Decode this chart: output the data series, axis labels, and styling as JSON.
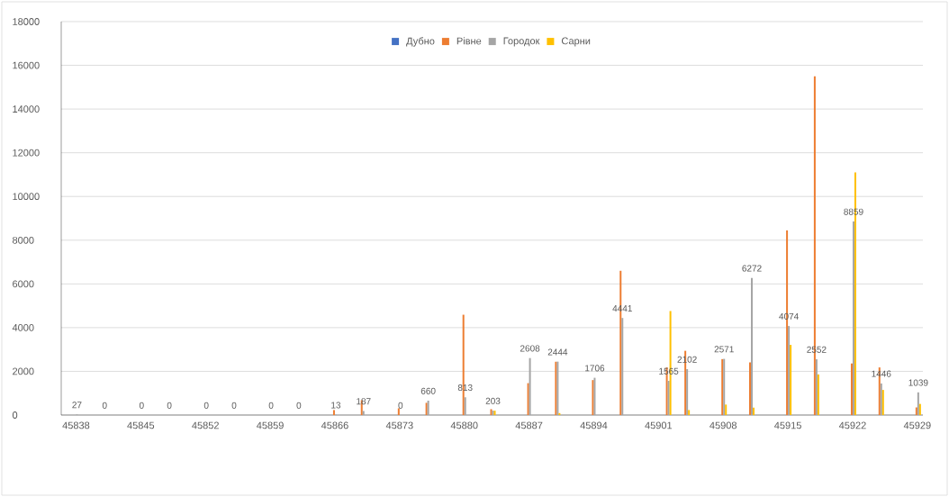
{
  "chart_data": {
    "type": "bar",
    "x": [
      45838,
      45841,
      45845,
      45848,
      45852,
      45855,
      45859,
      45862,
      45866,
      45869,
      45873,
      45876,
      45880,
      45883,
      45887,
      45890,
      45894,
      45897,
      45902,
      45904,
      45908,
      45911,
      45915,
      45918,
      45922,
      45925,
      45929
    ],
    "series": [
      {
        "name": "Дубно",
        "color": "#4472c4",
        "values": [
          0,
          0,
          0,
          0,
          0,
          0,
          0,
          0,
          0,
          0,
          0,
          0,
          0,
          0,
          0,
          0,
          0,
          0,
          0,
          0,
          0,
          0,
          0,
          0,
          0,
          0,
          0
        ]
      },
      {
        "name": "Рівне",
        "color": "#ed7d31",
        "values": [
          0,
          0,
          0,
          0,
          0,
          0,
          0,
          0,
          230,
          680,
          310,
          560,
          4590,
          270,
          1460,
          2440,
          1600,
          6600,
          2180,
          2940,
          2560,
          2410,
          8450,
          15500,
          2360,
          2180,
          350
        ]
      },
      {
        "name": "Городок",
        "color": "#a5a5a5",
        "values": [
          27,
          0,
          0,
          0,
          0,
          0,
          0,
          0,
          13,
          187,
          0,
          660,
          813,
          203,
          2608,
          2444,
          1706,
          4441,
          1565,
          2102,
          2571,
          6272,
          4074,
          2552,
          8859,
          1446,
          1039
        ],
        "value_labels": [
          "27",
          "0",
          "0",
          "0",
          "0",
          "0",
          "0",
          "0",
          "13",
          "187",
          "0",
          "660",
          "813",
          "203",
          "2608",
          "2444",
          "1706",
          "4441",
          "1565",
          "2102",
          "2571",
          "6272",
          "4074",
          "2552",
          "8859",
          "1446",
          "1039"
        ]
      },
      {
        "name": "Сарни",
        "color": "#ffc000",
        "values": [
          0,
          0,
          0,
          0,
          0,
          0,
          0,
          0,
          0,
          0,
          0,
          0,
          0,
          200,
          0,
          90,
          0,
          0,
          4760,
          230,
          480,
          340,
          3210,
          1860,
          11100,
          1150,
          510
        ]
      }
    ],
    "xlim": [
      45836.4,
      45929.6
    ],
    "ylim": [
      0,
      18000
    ],
    "xticks": [
      45838,
      45845,
      45852,
      45859,
      45866,
      45873,
      45880,
      45887,
      45894,
      45901,
      45908,
      45915,
      45922,
      45929
    ],
    "yticks": [
      0,
      2000,
      4000,
      6000,
      8000,
      10000,
      12000,
      14000,
      16000,
      18000
    ],
    "grid": "y",
    "legend": "top"
  }
}
